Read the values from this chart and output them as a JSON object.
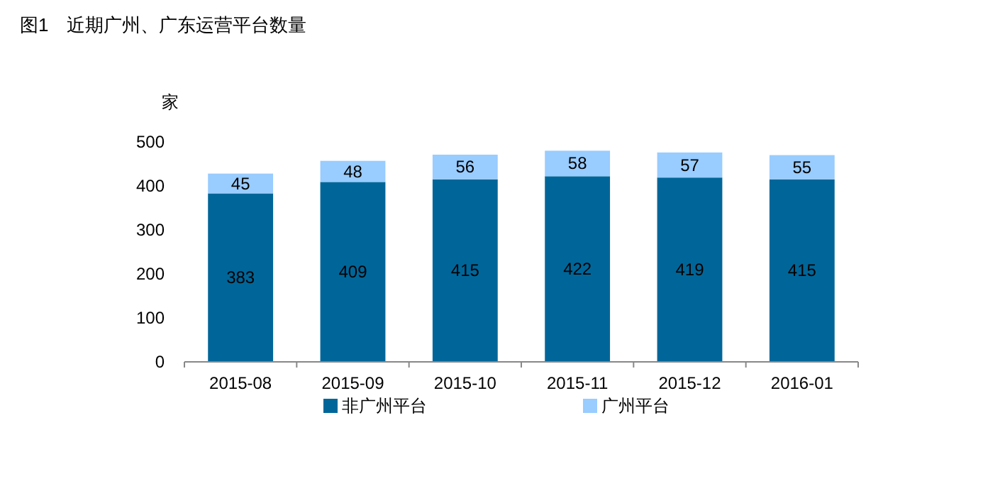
{
  "chart_data": {
    "type": "bar",
    "title": "图1　近期广州、广东运营平台数量",
    "ylabel": "家",
    "categories": [
      "2015-08",
      "2015-09",
      "2015-10",
      "2015-11",
      "2015-12",
      "2016-01"
    ],
    "stacked": true,
    "data_labels": true,
    "legend": "bottom",
    "grid": false,
    "ylim": [
      0,
      500
    ],
    "yticks": [
      0,
      100,
      200,
      300,
      400,
      500
    ],
    "series": [
      {
        "name": "非广州平台",
        "color": "#006699",
        "values": [
          383,
          409,
          415,
          422,
          419,
          415
        ]
      },
      {
        "name": "广州平台",
        "color": "#99ccff",
        "values": [
          45,
          48,
          56,
          58,
          57,
          55
        ]
      }
    ]
  }
}
